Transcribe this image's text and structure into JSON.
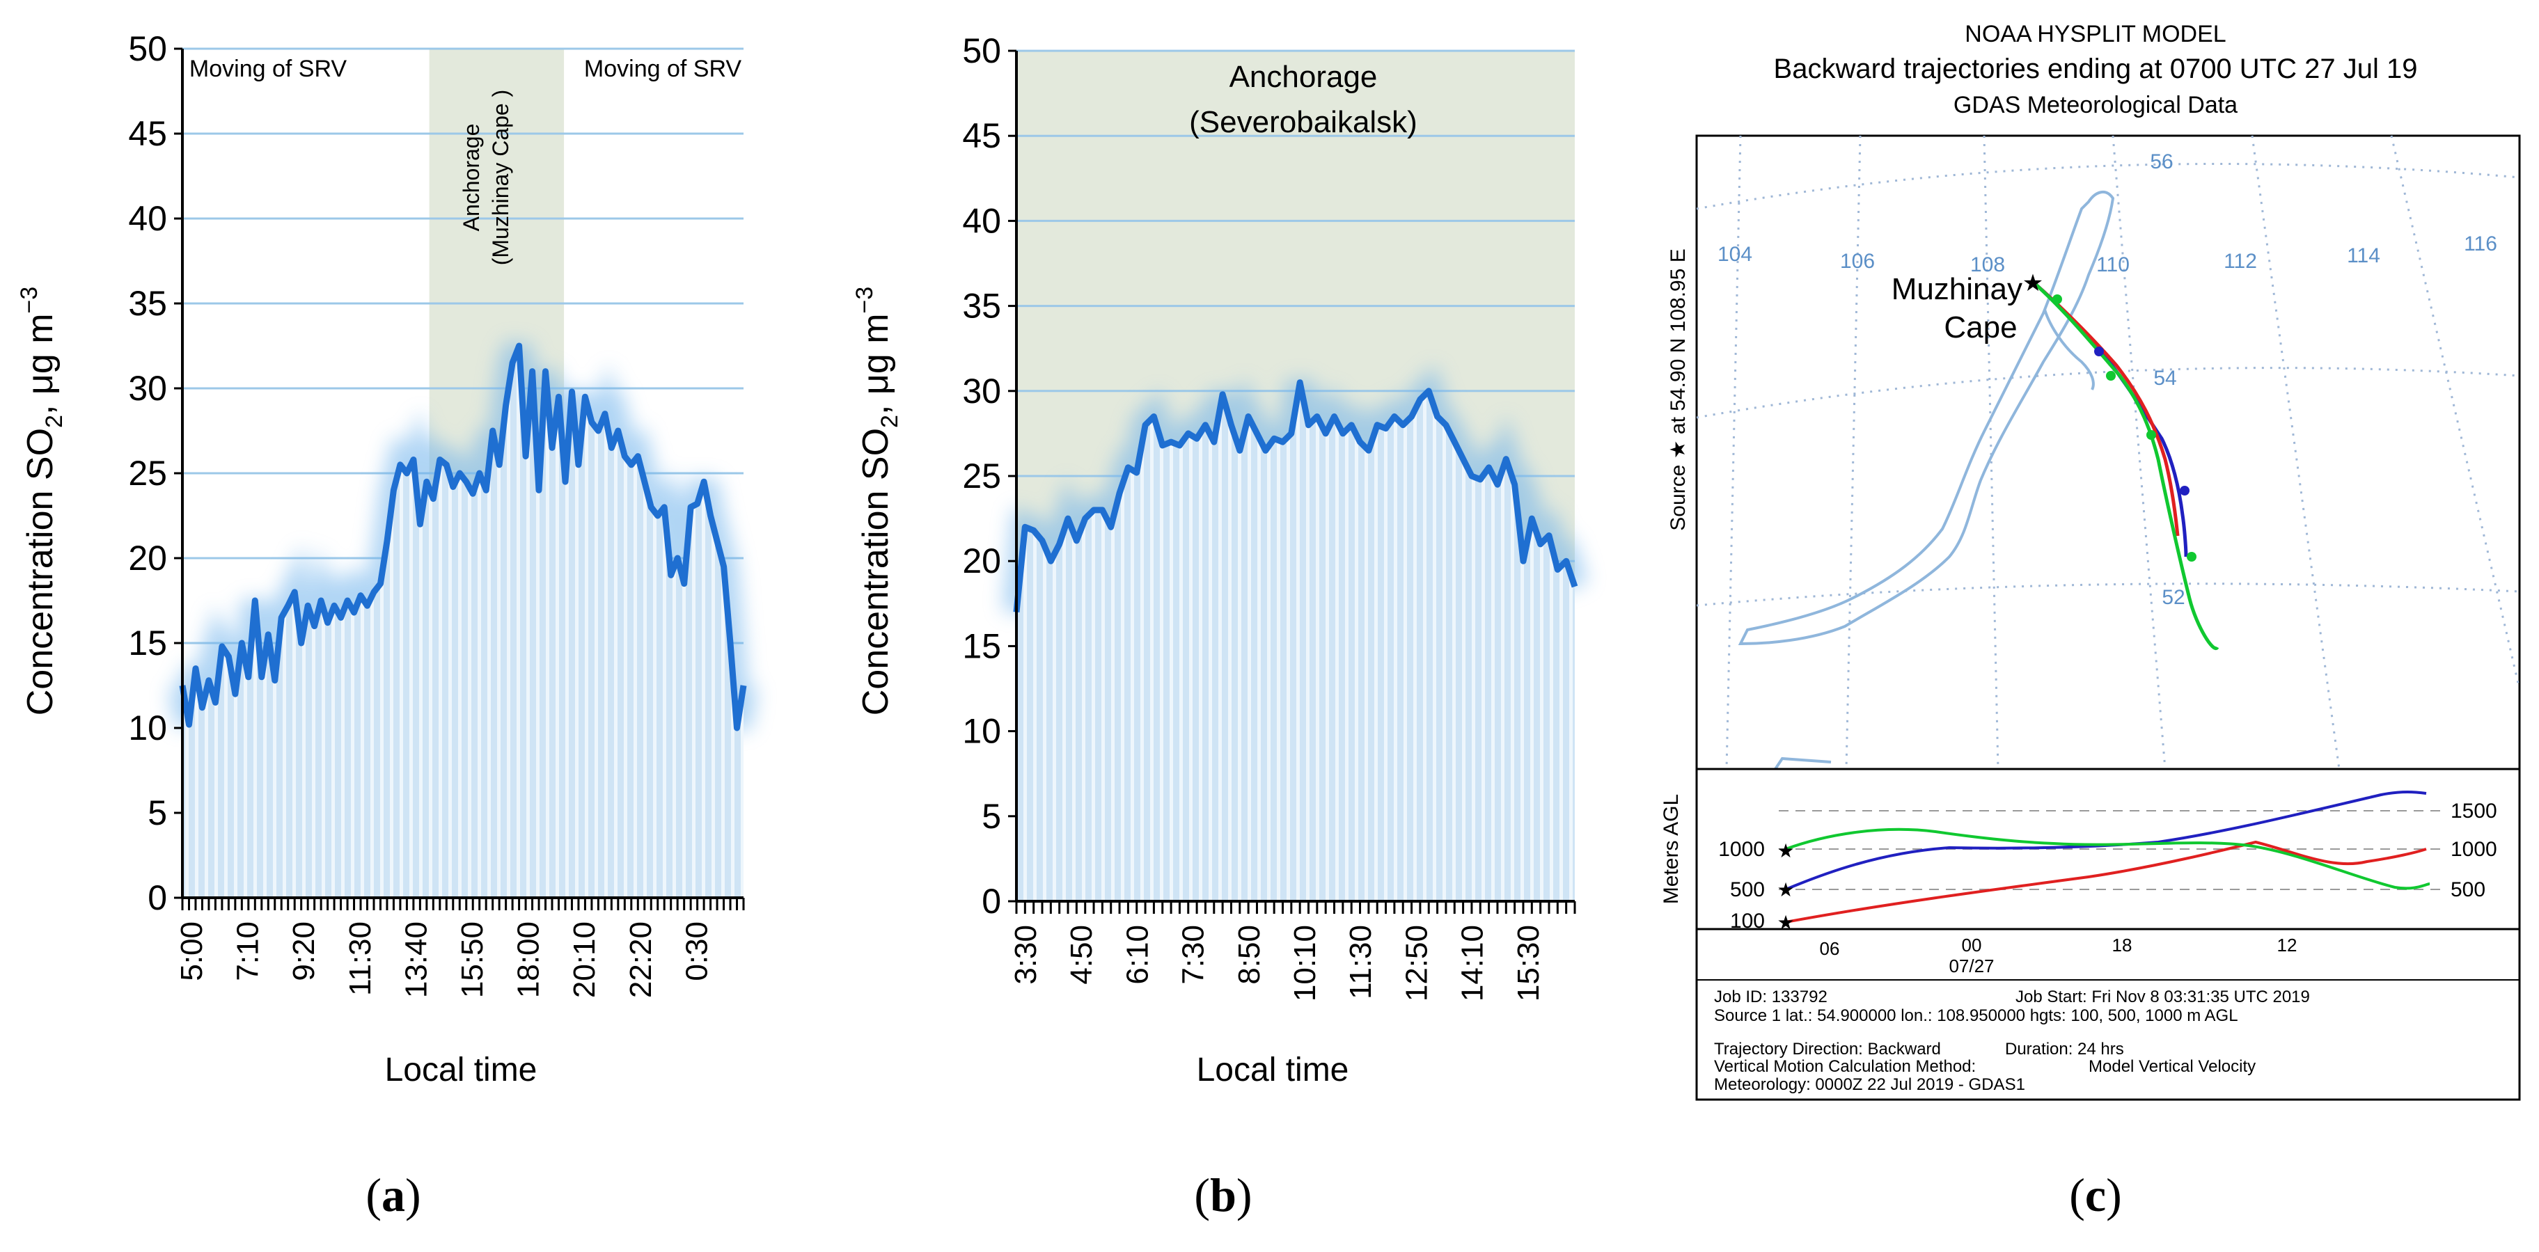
{
  "panels": {
    "a": "(a)",
    "b": "(b)",
    "c": "(c)"
  },
  "colors": {
    "line": "#1f6fd1",
    "fill": "#bcd8ee",
    "fill_stripe": "#e8f2fb",
    "grid": "#9cc8e8",
    "band": "#e3e9dc",
    "axis": "#000000"
  },
  "chart_data": [
    {
      "type": "area",
      "title": "",
      "ylabel": "Concentration SO2, μg m−3",
      "ylabel_main": "Concentration SO",
      "ylabel_sub": "2",
      "ylabel_rest": ", μg m",
      "ylabel_sup": "−3",
      "xlabel": "Local time",
      "ylim": [
        0,
        50
      ],
      "yticks": [
        0,
        5,
        10,
        15,
        20,
        25,
        30,
        35,
        40,
        45,
        50
      ],
      "xticks": [
        "5:00",
        "7:10",
        "9:20",
        "11:30",
        "13:40",
        "15:50",
        "18:00",
        "20:10",
        "22:20",
        "0:30"
      ],
      "annotations": [
        "Moving of SRV",
        "Moving of SRV"
      ],
      "band_label_1": "Anchorage",
      "band_label_2": "(Muzhinay Cape )",
      "band_range": [
        0.44,
        0.68
      ],
      "values": [
        12.5,
        10.2,
        13.5,
        11.2,
        12.8,
        11.5,
        14.8,
        14.2,
        12.0,
        15.0,
        13.0,
        17.5,
        13.0,
        15.5,
        12.8,
        16.5,
        17.2,
        18.0,
        15.0,
        17.2,
        16.0,
        17.5,
        16.2,
        17.2,
        16.5,
        17.5,
        16.8,
        17.8,
        17.2,
        18.0,
        18.5,
        21.0,
        24.0,
        25.5,
        25.0,
        25.8,
        22.0,
        24.5,
        23.5,
        25.8,
        25.5,
        24.2,
        25.0,
        24.5,
        23.8,
        25.0,
        24.0,
        27.5,
        25.5,
        29.0,
        31.5,
        32.5,
        26.0,
        31.0,
        24.0,
        31.0,
        26.5,
        29.5,
        24.5,
        29.8,
        25.5,
        29.5,
        28.0,
        27.5,
        28.5,
        26.5,
        27.5,
        26.0,
        25.5,
        26.0,
        24.5,
        23.0,
        22.5,
        23.0,
        19.0,
        20.0,
        18.5,
        23.0,
        23.2,
        24.5,
        22.5,
        21.0,
        19.5,
        15.0,
        10.0,
        12.5
      ]
    },
    {
      "type": "area",
      "title": "",
      "ylabel": "Concentration SO2, μg m−3",
      "ylabel_main": "Concentration SO",
      "ylabel_sub": "2",
      "ylabel_rest": ", μg m",
      "ylabel_sup": "−3",
      "xlabel": "Local time",
      "ylim": [
        0,
        50
      ],
      "yticks": [
        0,
        5,
        10,
        15,
        20,
        25,
        30,
        35,
        40,
        45,
        50
      ],
      "xticks": [
        "3:30",
        "4:50",
        "6:10",
        "7:30",
        "8:50",
        "10:10",
        "11:30",
        "12:50",
        "14:10",
        "15:30"
      ],
      "band_label_1": "Anchorage",
      "band_label_2": "(Severobaikalsk)",
      "values": [
        17.0,
        22.0,
        21.8,
        21.2,
        20.0,
        21.0,
        22.5,
        21.2,
        22.5,
        23.0,
        23.0,
        22.0,
        24.0,
        25.5,
        25.2,
        28.0,
        28.5,
        26.8,
        27.0,
        26.8,
        27.5,
        27.2,
        28.0,
        27.0,
        29.8,
        28.0,
        26.5,
        28.5,
        27.5,
        26.5,
        27.2,
        27.0,
        27.5,
        30.5,
        28.0,
        28.5,
        27.5,
        28.5,
        27.5,
        28.0,
        27.0,
        26.5,
        28.0,
        27.8,
        28.5,
        28.0,
        28.5,
        29.5,
        30.0,
        28.5,
        28.0,
        27.0,
        26.0,
        25.0,
        24.8,
        25.5,
        24.5,
        26.0,
        24.5,
        20.0,
        22.5,
        21.0,
        21.5,
        19.5,
        20.0,
        18.5
      ]
    },
    {
      "type": "image",
      "title_1": "NOAA HYSPLIT MODEL",
      "title_2": "Backward trajectories ending at 0700 UTC 27 Jul 19",
      "title_3": "GDAS Meteorological Data",
      "side_label": "Source ★ at 54.90 N 108.95 E",
      "location_1": "Muzhinay",
      "location_2": "Cape",
      "lon_labels": [
        "104",
        "106",
        "108",
        "110",
        "112",
        "114",
        "116"
      ],
      "lat_labels": [
        "56",
        "54",
        "52"
      ],
      "agl_axis_label": "Meters AGL",
      "agl_left_ticks": [
        "1000",
        "500",
        "100"
      ],
      "agl_right_ticks": [
        "1500",
        "1000",
        "500"
      ],
      "time_ticks": [
        "06",
        "00",
        "18",
        "12"
      ],
      "date_label": "07/27",
      "info": {
        "line1_left": "Job ID: 133792",
        "line1_right": "Job Start: Fri Nov  8 03:31:35 UTC 2019",
        "line2": "Source 1 lat.: 54.900000  lon.: 108.950000  hgts: 100, 500, 1000 m AGL",
        "line3_left": "Trajectory Direction: Backward",
        "line3_right": "Duration: 24 hrs",
        "line4_left": "Vertical Motion Calculation Method:",
        "line4_right": "Model Vertical Velocity",
        "line5": "Meteorology: 0000Z 22 Jul 2019 - GDAS1"
      },
      "series": [
        {
          "name": "100 m",
          "color": "#e02020"
        },
        {
          "name": "500 m",
          "color": "#2020c0"
        },
        {
          "name": "1000 m",
          "color": "#10c830"
        }
      ]
    }
  ]
}
